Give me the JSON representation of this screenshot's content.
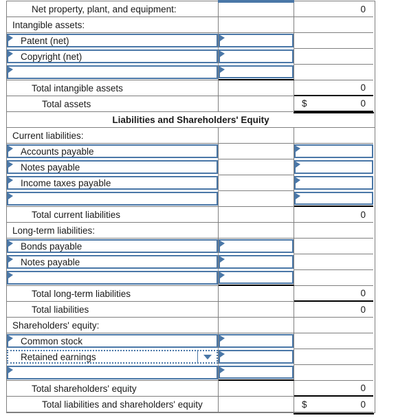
{
  "colors": {
    "accent_blue": "#4a77a7",
    "grid_gray": "#7f7f7f",
    "sum_black": "#000000",
    "text": "#1a1a1a"
  },
  "rows": [
    {
      "id": "net-ppe",
      "label": "Net property, plant, and equipment:",
      "style": "indent2",
      "v3": "0",
      "stub2": true
    },
    {
      "id": "intangible-assets-header",
      "label": "Intangible assets:",
      "style": "section"
    },
    {
      "id": "patent-net",
      "label": "Patent (net)",
      "c1": "box",
      "c2": "box"
    },
    {
      "id": "copyright-net",
      "label": "Copyright (net)",
      "c1": "box",
      "c2": "box"
    },
    {
      "id": "blank-intangible",
      "label": "",
      "c1": "box",
      "c2": "box-sum"
    },
    {
      "id": "total-intangible-assets",
      "label": "Total intangible assets",
      "style": "indent2",
      "v3": "0",
      "sum3": true
    },
    {
      "id": "total-assets",
      "label": "Total assets",
      "style": "indent3",
      "v3": "0",
      "currency": "$",
      "dbl3": true
    },
    {
      "id": "liabilities-equity-header",
      "header": true,
      "label": "Liabilities and Shareholders' Equity"
    },
    {
      "id": "current-liabilities-header",
      "label": "Current liabilities:",
      "style": "section"
    },
    {
      "id": "accounts-payable",
      "label": "Accounts payable",
      "c1": "box",
      "c3": "box"
    },
    {
      "id": "notes-payable",
      "label": "Notes payable",
      "c1": "box",
      "c3": "box"
    },
    {
      "id": "income-taxes-payable",
      "label": "Income taxes payable",
      "c1": "box",
      "c3": "box"
    },
    {
      "id": "blank-current-liabilities",
      "label": "",
      "c1": "box",
      "c3": "box-sum"
    },
    {
      "id": "total-current-liabilities",
      "label": "Total current liabilities",
      "style": "indent2",
      "v3": "0"
    },
    {
      "id": "long-term-liabilities-header",
      "label": "Long-term liabilities:",
      "style": "section"
    },
    {
      "id": "bonds-payable",
      "label": "Bonds payable",
      "c1": "box",
      "c2": "box"
    },
    {
      "id": "notes-payable-longterm",
      "label": "Notes payable",
      "c1": "box",
      "c2": "box"
    },
    {
      "id": "blank-long-term",
      "label": "",
      "c1": "box",
      "c2": "box-sum"
    },
    {
      "id": "total-long-term-liabilities",
      "label": "Total long-term liabilities",
      "style": "indent2",
      "v3": "0",
      "sum3": true
    },
    {
      "id": "total-liabilities",
      "label": "Total liabilities",
      "style": "indent2",
      "v3": "0"
    },
    {
      "id": "shareholders-equity-header",
      "label": "Shareholders' equity:",
      "style": "section"
    },
    {
      "id": "common-stock",
      "label": "Common stock",
      "c1": "box",
      "c2": "box"
    },
    {
      "id": "retained-earnings",
      "label": "Retained earnings",
      "c1": "dropdown",
      "c2": "box"
    },
    {
      "id": "blank-equity",
      "label": "",
      "c1": "box",
      "c2": "box-sum"
    },
    {
      "id": "total-shareholders-equity",
      "label": "Total shareholders' equity",
      "style": "indent2",
      "v3": "0",
      "sum3": true
    },
    {
      "id": "total-liabilities-and-equity",
      "label": "Total liabilities and shareholders' equity",
      "style": "indent3",
      "v3": "0",
      "currency": "$",
      "dbl3": true
    }
  ]
}
